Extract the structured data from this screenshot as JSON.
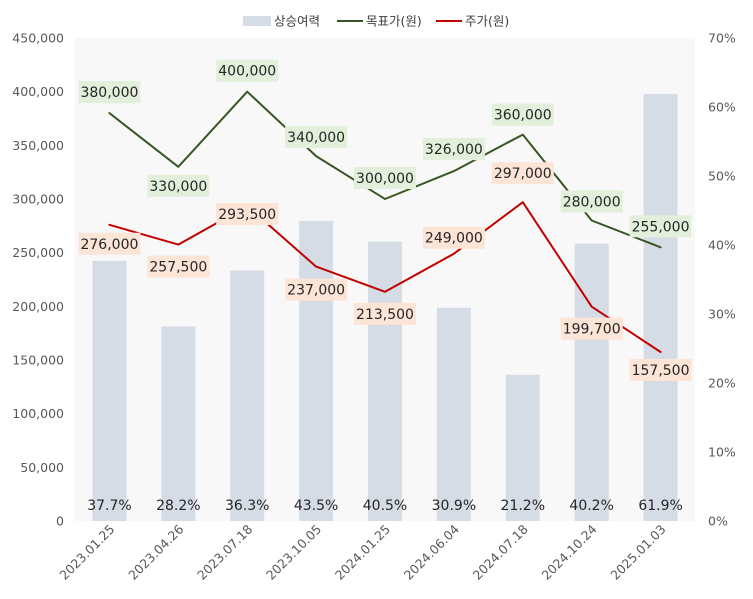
{
  "chart_data": {
    "type": "bar+line",
    "categories": [
      "2023.01.25",
      "2023.04.26",
      "2023.07.18",
      "2023.10.05",
      "2024.01.25",
      "2024.06.04",
      "2024.07.18",
      "2024.10.24",
      "2025.01.03"
    ],
    "series": [
      {
        "name": "상승여력",
        "type": "bar",
        "axis": "right",
        "values": [
          0.377,
          0.282,
          0.363,
          0.435,
          0.405,
          0.309,
          0.212,
          0.402,
          0.619
        ],
        "labels": [
          "37.7%",
          "28.2%",
          "36.3%",
          "43.5%",
          "40.5%",
          "30.9%",
          "21.2%",
          "40.2%",
          "61.9%"
        ],
        "color": "#d6dce5"
      },
      {
        "name": "목표가(원)",
        "type": "line",
        "axis": "left",
        "values": [
          380000,
          330000,
          400000,
          340000,
          300000,
          326000,
          360000,
          280000,
          255000
        ],
        "labels": [
          "380,000",
          "330,000",
          "400,000",
          "340,000",
          "300,000",
          "326,000",
          "360,000",
          "280,000",
          "255,000"
        ],
        "color": "#375623",
        "label_bg": "#e2efda"
      },
      {
        "name": "주가(원)",
        "type": "line",
        "axis": "left",
        "values": [
          276000,
          257500,
          293500,
          237000,
          213500,
          249000,
          297000,
          199700,
          157500
        ],
        "labels": [
          "276,000",
          "257,500",
          "293,500",
          "237,000",
          "213,500",
          "249,000",
          "297,000",
          "199,700",
          "157,500"
        ],
        "color": "#c00000",
        "label_bg": "#fce4d6"
      }
    ],
    "y_left": {
      "min": 0,
      "max": 450000,
      "ticks": [
        "0",
        "50,000",
        "100,000",
        "150,000",
        "200,000",
        "250,000",
        "300,000",
        "350,000",
        "400,000",
        "450,000"
      ]
    },
    "y_right": {
      "min": 0,
      "max": 0.7,
      "ticks": [
        "0%",
        "10%",
        "20%",
        "30%",
        "40%",
        "50%",
        "60%",
        "70%"
      ]
    },
    "legend_position": "top",
    "grid": false,
    "plot_background": "#f8f8f8"
  }
}
